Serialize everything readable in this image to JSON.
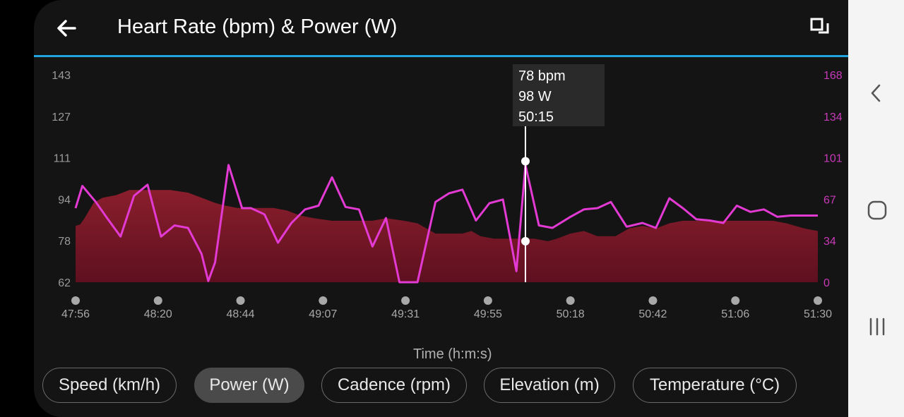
{
  "header": {
    "title": "Heart Rate (bpm) & Power (W)",
    "back_icon": "arrow-left-icon",
    "fullscreen_icon": "fullscreen-toggle-icon"
  },
  "colors": {
    "accent": "#1fa5e0",
    "power_line": "#e23ad3",
    "hr_area": "#7a1a28",
    "background": "#141414"
  },
  "chart_data": {
    "type": "area",
    "xlabel": "Time (h:m:s)",
    "x_ticks": [
      "47:56",
      "48:20",
      "48:44",
      "49:07",
      "49:31",
      "49:55",
      "50:18",
      "50:42",
      "51:06",
      "51:30"
    ],
    "left_axis": {
      "ticks": [
        "143",
        "127",
        "111",
        "94",
        "78",
        "62"
      ],
      "range": [
        62,
        143
      ]
    },
    "right_axis": {
      "ticks": [
        "168",
        "134",
        "101",
        "67",
        "34",
        "0"
      ],
      "range": [
        0,
        168
      ]
    },
    "series": [
      {
        "type": "area",
        "unit": "bpm",
        "points": [
          [
            0,
            84
          ],
          [
            2,
            84.5
          ],
          [
            4,
            87
          ],
          [
            8,
            93
          ],
          [
            12,
            95
          ],
          [
            18,
            96
          ],
          [
            24,
            98
          ],
          [
            30,
            98
          ],
          [
            36,
            98
          ],
          [
            42,
            98
          ],
          [
            50,
            97
          ],
          [
            56,
            95
          ],
          [
            62,
            93
          ],
          [
            66,
            92
          ],
          [
            72,
            91
          ],
          [
            80,
            91
          ],
          [
            88,
            91
          ],
          [
            94,
            90
          ],
          [
            100,
            88
          ],
          [
            106,
            87
          ],
          [
            114,
            86
          ],
          [
            120,
            86
          ],
          [
            128,
            86
          ],
          [
            132,
            86
          ],
          [
            138,
            87
          ],
          [
            146,
            86
          ],
          [
            152,
            85
          ],
          [
            160,
            81
          ],
          [
            168,
            81
          ],
          [
            172,
            81
          ],
          [
            176,
            82
          ],
          [
            180,
            80
          ],
          [
            186,
            79
          ],
          [
            196,
            79
          ],
          [
            204,
            79
          ],
          [
            210,
            78
          ],
          [
            214,
            79
          ],
          [
            220,
            81
          ],
          [
            226,
            82
          ],
          [
            232,
            80
          ],
          [
            240,
            80
          ],
          [
            246,
            83
          ],
          [
            252,
            84
          ],
          [
            258,
            83
          ],
          [
            264,
            85
          ],
          [
            270,
            86
          ],
          [
            276,
            86
          ],
          [
            290,
            86
          ],
          [
            304,
            86
          ],
          [
            310,
            86
          ],
          [
            316,
            85
          ],
          [
            324,
            83
          ],
          [
            330,
            82
          ]
        ]
      },
      {
        "type": "line",
        "unit": "W",
        "points": [
          [
            0,
            60
          ],
          [
            3,
            78
          ],
          [
            9,
            65
          ],
          [
            14,
            52
          ],
          [
            20,
            37
          ],
          [
            26,
            70
          ],
          [
            32,
            79
          ],
          [
            38,
            37
          ],
          [
            44,
            46
          ],
          [
            50,
            44
          ],
          [
            56,
            23
          ],
          [
            59,
            1
          ],
          [
            62,
            16
          ],
          [
            68,
            95
          ],
          [
            74,
            60
          ],
          [
            78,
            60
          ],
          [
            84,
            55
          ],
          [
            90,
            32
          ],
          [
            96,
            48
          ],
          [
            102,
            59
          ],
          [
            108,
            62
          ],
          [
            114,
            85
          ],
          [
            120,
            61
          ],
          [
            126,
            59
          ],
          [
            132,
            29
          ],
          [
            138,
            52
          ],
          [
            144,
            0
          ],
          [
            152,
            0
          ],
          [
            160,
            65
          ],
          [
            166,
            72
          ],
          [
            172,
            75
          ],
          [
            178,
            50
          ],
          [
            184,
            64
          ],
          [
            190,
            67
          ],
          [
            196,
            9
          ],
          [
            200,
            95
          ],
          [
            206,
            46
          ],
          [
            212,
            44
          ],
          [
            220,
            53
          ],
          [
            226,
            59
          ],
          [
            232,
            60
          ],
          [
            238,
            65
          ],
          [
            245,
            45
          ],
          [
            252,
            48
          ],
          [
            258,
            44
          ],
          [
            264,
            68
          ],
          [
            270,
            60
          ],
          [
            276,
            51
          ],
          [
            282,
            50
          ],
          [
            288,
            48
          ],
          [
            294,
            62
          ],
          [
            300,
            57
          ],
          [
            306,
            59
          ],
          [
            312,
            53
          ],
          [
            318,
            54
          ],
          [
            330,
            54
          ]
        ]
      }
    ],
    "cursor": {
      "time": "50:15",
      "hr": 78,
      "power": 98
    }
  },
  "tooltip": {
    "hr": "78 bpm",
    "power": "98 W",
    "time": "50:15"
  },
  "chips": [
    {
      "label": "Speed (km/h)",
      "active": false
    },
    {
      "label": "Power (W)",
      "active": true
    },
    {
      "label": "Cadence (rpm)",
      "active": false
    },
    {
      "label": "Elevation (m)",
      "active": false
    },
    {
      "label": "Temperature (°C)",
      "active": false
    }
  ],
  "system_nav": {
    "back_icon": "nav-back-icon",
    "home_icon": "nav-home-icon",
    "recents_icon": "nav-recents-icon"
  }
}
